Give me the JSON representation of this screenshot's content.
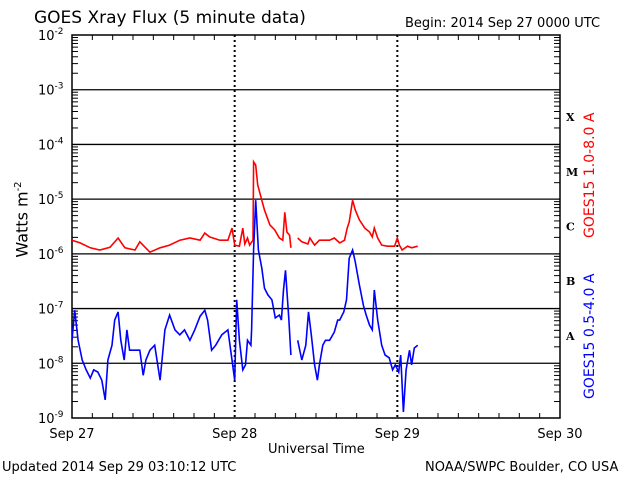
{
  "chart_data": {
    "type": "line",
    "title": "GOES Xray Flux (5 minute data)",
    "begin": "Begin:  2014 Sep 27 0000 UTC",
    "xlabel": "Universal Time",
    "ylabel": "Watts m",
    "ylabel_sup": "-2",
    "x_unit": "hours since 2014 Sep 27 0000 UTC",
    "xlim": [
      0,
      72
    ],
    "y_scale": "log",
    "ylim": [
      1e-09,
      0.01
    ],
    "x_ticks": [
      {
        "x": 0,
        "label": "Sep 27"
      },
      {
        "x": 24,
        "label": "Sep 28"
      },
      {
        "x": 48,
        "label": "Sep 29"
      },
      {
        "x": 72,
        "label": "Sep 30"
      }
    ],
    "y_ticks": [
      {
        "exp": -2,
        "label": "-2"
      },
      {
        "exp": -3,
        "label": "-3"
      },
      {
        "exp": -4,
        "label": "-4"
      },
      {
        "exp": -5,
        "label": "-5"
      },
      {
        "exp": -6,
        "label": "-6"
      },
      {
        "exp": -7,
        "label": "-7"
      },
      {
        "exp": -8,
        "label": "-8"
      },
      {
        "exp": -9,
        "label": "-9"
      }
    ],
    "y_tick_base": "10",
    "flare_classes": [
      {
        "label": "X",
        "exp": -3.5
      },
      {
        "label": "M",
        "exp": -4.5
      },
      {
        "label": "C",
        "exp": -5.5
      },
      {
        "label": "B",
        "exp": -6.5
      },
      {
        "label": "A",
        "exp": -7.5
      }
    ],
    "grid": "horizontal at each decade 1e-3..1e-8",
    "series": [
      {
        "name": "GOES15 1.0-8.0 A",
        "color": "#ff0000",
        "points_log10": [
          [
            0,
            -5.75
          ],
          [
            1.2,
            -5.8
          ],
          [
            2.7,
            -5.89
          ],
          [
            4.1,
            -5.93
          ],
          [
            5.6,
            -5.88
          ],
          [
            6.8,
            -5.71
          ],
          [
            7.8,
            -5.89
          ],
          [
            9.3,
            -5.93
          ],
          [
            10.0,
            -5.78
          ],
          [
            11.5,
            -5.97
          ],
          [
            13.0,
            -5.89
          ],
          [
            14.4,
            -5.84
          ],
          [
            15.9,
            -5.75
          ],
          [
            17.4,
            -5.71
          ],
          [
            18.9,
            -5.75
          ],
          [
            19.6,
            -5.62
          ],
          [
            20.3,
            -5.69
          ],
          [
            21.8,
            -5.75
          ],
          [
            23.0,
            -5.75
          ],
          [
            23.6,
            -5.53
          ],
          [
            24.0,
            -5.84
          ],
          [
            24.7,
            -5.86
          ],
          [
            25.2,
            -5.53
          ],
          [
            25.5,
            -5.82
          ],
          [
            25.9,
            -5.71
          ],
          [
            26.2,
            -5.84
          ],
          [
            26.7,
            -5.75
          ],
          [
            26.8,
            -4.32
          ],
          [
            27.1,
            -4.38
          ],
          [
            27.4,
            -4.74
          ],
          [
            28.0,
            -5.02
          ],
          [
            28.4,
            -5.2
          ],
          [
            29.2,
            -5.47
          ],
          [
            29.9,
            -5.56
          ],
          [
            30.6,
            -5.71
          ],
          [
            31.1,
            -5.75
          ],
          [
            31.4,
            -5.24
          ],
          [
            31.7,
            -5.6
          ],
          [
            32.1,
            -5.66
          ],
          [
            32.3,
            -5.89
          ],
          null,
          [
            33.3,
            -5.71
          ],
          [
            33.9,
            -5.78
          ],
          [
            34.8,
            -5.82
          ],
          [
            35.1,
            -5.71
          ],
          [
            35.8,
            -5.84
          ],
          [
            36.5,
            -5.75
          ],
          [
            38.0,
            -5.75
          ],
          [
            38.7,
            -5.71
          ],
          [
            39.5,
            -5.8
          ],
          [
            40.2,
            -5.75
          ],
          [
            40.6,
            -5.53
          ],
          [
            40.9,
            -5.42
          ],
          [
            41.4,
            -5.02
          ],
          [
            41.8,
            -5.2
          ],
          [
            42.4,
            -5.38
          ],
          [
            43.2,
            -5.53
          ],
          [
            43.9,
            -5.6
          ],
          [
            44.3,
            -5.69
          ],
          [
            44.6,
            -5.53
          ],
          [
            45.1,
            -5.71
          ],
          [
            45.7,
            -5.84
          ],
          [
            46.5,
            -5.86
          ],
          [
            47.6,
            -5.86
          ],
          [
            48.0,
            -5.71
          ],
          [
            48.3,
            -5.84
          ],
          [
            48.7,
            -5.93
          ],
          [
            49.5,
            -5.86
          ],
          [
            50.1,
            -5.89
          ],
          [
            51.0,
            -5.86
          ]
        ]
      },
      {
        "name": "GOES15 0.5-4.0 A",
        "color": "#0000ff",
        "points_log10": [
          [
            0,
            -7.58
          ],
          [
            0.4,
            -7.03
          ],
          [
            0.9,
            -7.58
          ],
          [
            1.5,
            -7.94
          ],
          [
            2.1,
            -8.12
          ],
          [
            2.7,
            -8.27
          ],
          [
            3.2,
            -8.12
          ],
          [
            3.8,
            -8.16
          ],
          [
            4.4,
            -8.31
          ],
          [
            4.9,
            -8.67
          ],
          [
            5.3,
            -7.94
          ],
          [
            5.9,
            -7.67
          ],
          [
            6.3,
            -7.21
          ],
          [
            6.8,
            -7.06
          ],
          [
            7.2,
            -7.58
          ],
          [
            7.7,
            -7.94
          ],
          [
            8.1,
            -7.39
          ],
          [
            8.5,
            -7.76
          ],
          [
            9.3,
            -7.76
          ],
          [
            10.0,
            -7.76
          ],
          [
            10.5,
            -8.22
          ],
          [
            10.9,
            -7.94
          ],
          [
            11.5,
            -7.76
          ],
          [
            12.2,
            -7.67
          ],
          [
            13.0,
            -8.31
          ],
          [
            13.7,
            -7.39
          ],
          [
            14.4,
            -7.12
          ],
          [
            15.2,
            -7.39
          ],
          [
            15.9,
            -7.48
          ],
          [
            16.6,
            -7.39
          ],
          [
            17.4,
            -7.58
          ],
          [
            18.1,
            -7.39
          ],
          [
            18.9,
            -7.14
          ],
          [
            19.6,
            -7.03
          ],
          [
            20.0,
            -7.21
          ],
          [
            20.6,
            -7.76
          ],
          [
            21.2,
            -7.67
          ],
          [
            22.1,
            -7.48
          ],
          [
            23.0,
            -7.39
          ],
          [
            23.6,
            -7.94
          ],
          [
            24.0,
            -8.31
          ],
          [
            24.3,
            -6.84
          ],
          [
            24.7,
            -7.58
          ],
          [
            25.2,
            -8.12
          ],
          [
            25.6,
            -8.03
          ],
          [
            25.9,
            -7.58
          ],
          [
            26.4,
            -7.67
          ],
          [
            26.5,
            -7.39
          ],
          [
            26.8,
            -5.93
          ],
          [
            27.1,
            -5.02
          ],
          [
            27.5,
            -5.93
          ],
          [
            28.0,
            -6.26
          ],
          [
            28.4,
            -6.63
          ],
          [
            28.9,
            -6.75
          ],
          [
            29.5,
            -6.84
          ],
          [
            30.0,
            -7.17
          ],
          [
            30.6,
            -7.12
          ],
          [
            30.9,
            -7.21
          ],
          [
            31.2,
            -6.66
          ],
          [
            31.5,
            -6.3
          ],
          [
            32.0,
            -7.21
          ],
          [
            32.3,
            -7.85
          ],
          null,
          [
            33.3,
            -7.58
          ],
          [
            33.9,
            -7.94
          ],
          [
            34.5,
            -7.67
          ],
          [
            34.9,
            -7.06
          ],
          [
            35.3,
            -7.48
          ],
          [
            35.8,
            -8.03
          ],
          [
            36.2,
            -8.31
          ],
          [
            36.5,
            -8.03
          ],
          [
            37.0,
            -7.67
          ],
          [
            37.4,
            -7.58
          ],
          [
            38.0,
            -7.58
          ],
          [
            38.7,
            -7.43
          ],
          [
            39.2,
            -7.21
          ],
          [
            39.5,
            -7.21
          ],
          [
            40.1,
            -7.06
          ],
          [
            40.5,
            -6.84
          ],
          [
            40.9,
            -6.08
          ],
          [
            41.4,
            -5.93
          ],
          [
            41.8,
            -6.15
          ],
          [
            42.4,
            -6.57
          ],
          [
            43.0,
            -6.94
          ],
          [
            43.4,
            -7.12
          ],
          [
            43.9,
            -7.3
          ],
          [
            44.3,
            -7.39
          ],
          [
            44.6,
            -6.66
          ],
          [
            45.1,
            -7.21
          ],
          [
            45.7,
            -7.67
          ],
          [
            46.2,
            -7.85
          ],
          [
            46.8,
            -7.9
          ],
          [
            47.3,
            -8.12
          ],
          [
            47.7,
            -8.03
          ],
          [
            48.2,
            -8.16
          ],
          [
            48.5,
            -7.85
          ],
          [
            48.9,
            -8.89
          ],
          [
            49.3,
            -8.12
          ],
          [
            49.8,
            -7.76
          ],
          [
            50.1,
            -8.03
          ],
          [
            50.5,
            -7.72
          ],
          [
            51.0,
            -7.67
          ]
        ]
      }
    ]
  },
  "footer": {
    "updated": "Updated 2014 Sep 29 03:10:12 UTC",
    "credit": "NOAA/SWPC Boulder, CO USA"
  }
}
